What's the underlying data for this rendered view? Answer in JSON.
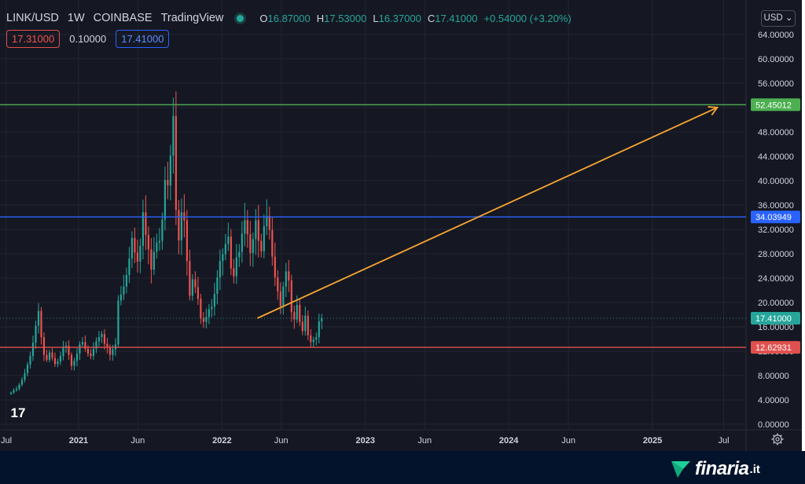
{
  "header": {
    "symbol": "LINK/USD",
    "interval": "1W",
    "exchange": "COINBASE",
    "platform": "TradingView",
    "ohlc": {
      "open_label": "O",
      "open": "16.87000",
      "high_label": "H",
      "high": "17.53000",
      "low_label": "L",
      "low": "16.37000",
      "close_label": "C",
      "close": "17.41000",
      "change": "+0.54000 (+3.20%)"
    }
  },
  "quote": {
    "bid": "17.31000",
    "spread": "0.10000",
    "ask": "17.41000"
  },
  "currency_selector": {
    "value": "USD"
  },
  "colors": {
    "background": "#151823",
    "up": "#26a69a",
    "down": "#ef5350",
    "resistance": "#4caf50",
    "middle": "#2962ff",
    "support": "#e0504e",
    "arrow": "#f7a531",
    "footer": "#03132b"
  },
  "price_axis": {
    "ticks": [
      "64.00000",
      "60.00000",
      "56.00000",
      "52.00000",
      "48.00000",
      "44.00000",
      "40.00000",
      "36.00000",
      "32.00000",
      "28.00000",
      "24.00000",
      "20.00000",
      "16.00000",
      "12.00000",
      "8.00000",
      "4.00000",
      "0.00000"
    ]
  },
  "time_axis": {
    "ticks": [
      {
        "label": "Jul",
        "date": "2020-07-01",
        "bold": false
      },
      {
        "label": "2021",
        "date": "2021-01-01",
        "bold": true
      },
      {
        "label": "Jun",
        "date": "2021-06-01",
        "bold": false
      },
      {
        "label": "2022",
        "date": "2022-01-01",
        "bold": true
      },
      {
        "label": "Jun",
        "date": "2022-06-01",
        "bold": false
      },
      {
        "label": "2023",
        "date": "2023-01-01",
        "bold": true
      },
      {
        "label": "Jun",
        "date": "2023-06-01",
        "bold": false
      },
      {
        "label": "2024",
        "date": "2024-01-01",
        "bold": true
      },
      {
        "label": "Jun",
        "date": "2024-06-01",
        "bold": false
      },
      {
        "label": "2025",
        "date": "2025-01-01",
        "bold": true
      },
      {
        "label": "Jul",
        "date": "2025-07-01",
        "bold": false
      }
    ]
  },
  "levels": [
    {
      "name": "resistance",
      "price": 52.45012,
      "label": "52.45012",
      "color": "#4caf50"
    },
    {
      "name": "middle",
      "price": 34.03949,
      "label": "34.03949",
      "color": "#2962ff"
    },
    {
      "name": "support",
      "price": 12.62931,
      "label": "12.62931",
      "color": "#e0504e"
    }
  ],
  "last_price": {
    "price": 17.41,
    "label": "17.41000",
    "color": "#26a69a"
  },
  "arrow": {
    "from": {
      "date": "2022-04-01",
      "price": 17.41
    },
    "to": {
      "date": "2025-06-15",
      "price": 52.0
    },
    "color": "#f7a531"
  },
  "chart_data": {
    "type": "candlestick",
    "x_start": "2020-06-15",
    "x_end": "2025-08-25",
    "ylim": [
      0,
      65
    ],
    "series": [
      {
        "name": "LINK/USD",
        "weekly_close": [
          5.2,
          5.6,
          5.8,
          6.5,
          7.3,
          8.4,
          9.8,
          11.2,
          13.4,
          16.2,
          18.6,
          14.3,
          11.4,
          10.6,
          11.8,
          10.9,
          9.9,
          10.3,
          11.2,
          12.6,
          12.9,
          11.4,
          9.6,
          10.4,
          11.6,
          13.1,
          13.5,
          12.4,
          11.6,
          11.2,
          12.4,
          13.6,
          14.3,
          14.8,
          13.2,
          12.6,
          11.4,
          12.3,
          13.1,
          20.3,
          21.3,
          22.6,
          24.5,
          27.2,
          30.6,
          28.2,
          26.7,
          29.3,
          34.8,
          31.1,
          28.7,
          25.4,
          28.3,
          29.8,
          30.1,
          33.6,
          40.1,
          39.2,
          44.1,
          50.6,
          35.2,
          30.2,
          34.8,
          33.5,
          26.8,
          21.1,
          23.8,
          22.5,
          20.6,
          17.4,
          16.8,
          17.6,
          18.9,
          19.3,
          21.4,
          24.1,
          26.8,
          27.9,
          29.6,
          30.8,
          25.6,
          24.3,
          27.4,
          28.3,
          31.3,
          33.5,
          31.2,
          28.1,
          30.4,
          33.5,
          30.1,
          28.4,
          32.5,
          34.2,
          31.9,
          27.5,
          24.1,
          21.8,
          19.4,
          22.6,
          25.1,
          23.6,
          18.4,
          17.2,
          19.6,
          16.8,
          15.3,
          17.8,
          14.6,
          13.5,
          13.9,
          14.3,
          16.9,
          17.41
        ]
      }
    ]
  },
  "watermark": {
    "brand": "finaria",
    "tld": ".it"
  }
}
